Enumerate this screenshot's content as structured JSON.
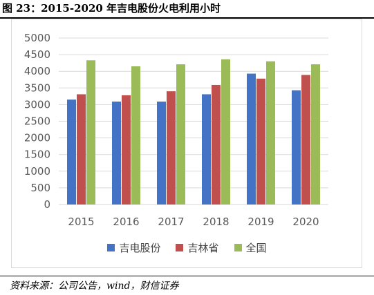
{
  "figure": {
    "title": "图 23：2015-2020 年吉电股份火电利用小时",
    "source": "资料来源：公司公告，wind，财信证券"
  },
  "colors": {
    "series": [
      "#4472C4",
      "#C0504D",
      "#9BBB59"
    ],
    "grid": "#d9d9d9",
    "tick_text": "#595959"
  },
  "chart_data": {
    "type": "bar",
    "categories": [
      "2015",
      "2016",
      "2017",
      "2018",
      "2019",
      "2020"
    ],
    "series": [
      {
        "name": "吉电股份",
        "values": [
          3150,
          3090,
          3090,
          3310,
          3930,
          3430
        ]
      },
      {
        "name": "吉林省",
        "values": [
          3310,
          3280,
          3400,
          3590,
          3780,
          3890
        ]
      },
      {
        "name": "全国",
        "values": [
          4330,
          4150,
          4210,
          4360,
          4300,
          4210
        ]
      }
    ],
    "yticks": [
      0,
      500,
      1000,
      1500,
      2000,
      2500,
      3000,
      3500,
      4000,
      4500,
      5000
    ],
    "ylim": [
      0,
      5000
    ],
    "grid": true,
    "legend_position": "bottom"
  }
}
